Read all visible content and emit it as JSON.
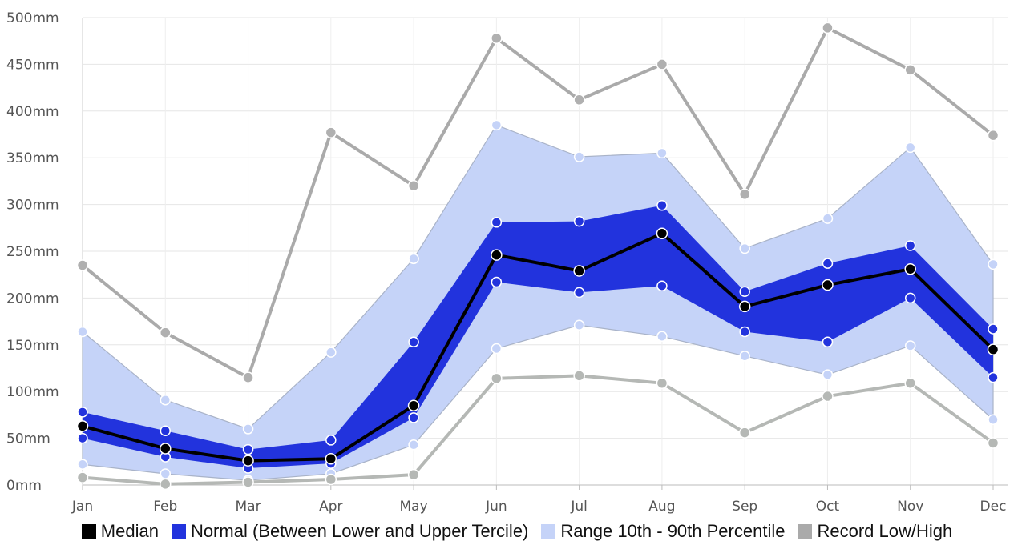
{
  "chart_data": {
    "type": "area",
    "categories": [
      "Jan",
      "Feb",
      "Mar",
      "Apr",
      "May",
      "Jun",
      "Jul",
      "Aug",
      "Sep",
      "Oct",
      "Nov",
      "Dec"
    ],
    "ylim": [
      0,
      500
    ],
    "yticks": [
      0,
      50,
      100,
      150,
      200,
      250,
      300,
      350,
      400,
      450,
      500
    ],
    "y_tick_labels": [
      "0mm",
      "50mm",
      "100mm",
      "150mm",
      "200mm",
      "250mm",
      "300mm",
      "350mm",
      "400mm",
      "450mm",
      "500mm"
    ],
    "grid": true,
    "legend_position": "bottom",
    "title": "",
    "xlabel": "",
    "ylabel": "",
    "series": [
      {
        "name": "Median",
        "color": "#000000",
        "values": [
          63,
          39,
          26,
          28,
          85,
          246,
          229,
          269,
          191,
          214,
          231,
          145
        ]
      },
      {
        "name": "Normal (Between Lower and Upper Tercile)",
        "color": "#2233dd",
        "lower": [
          50,
          30,
          18,
          23,
          72,
          217,
          206,
          213,
          164,
          153,
          200,
          115
        ],
        "upper": [
          78,
          58,
          38,
          48,
          153,
          281,
          282,
          299,
          207,
          237,
          256,
          167
        ]
      },
      {
        "name": "Range 10th - 90th Percentile",
        "color": "#c5d3f8",
        "lower": [
          22,
          12,
          5,
          12,
          43,
          146,
          171,
          159,
          138,
          118,
          149,
          70
        ],
        "upper": [
          164,
          91,
          60,
          142,
          242,
          385,
          351,
          355,
          253,
          285,
          361,
          236
        ]
      },
      {
        "name": "Record Low/High",
        "color": "#aaaaaa",
        "lower": [
          8,
          1,
          3,
          6,
          11,
          114,
          117,
          109,
          56,
          95,
          109,
          45
        ],
        "upper": [
          235,
          163,
          115,
          377,
          320,
          478,
          412,
          450,
          311,
          489,
          444,
          374
        ]
      }
    ]
  }
}
